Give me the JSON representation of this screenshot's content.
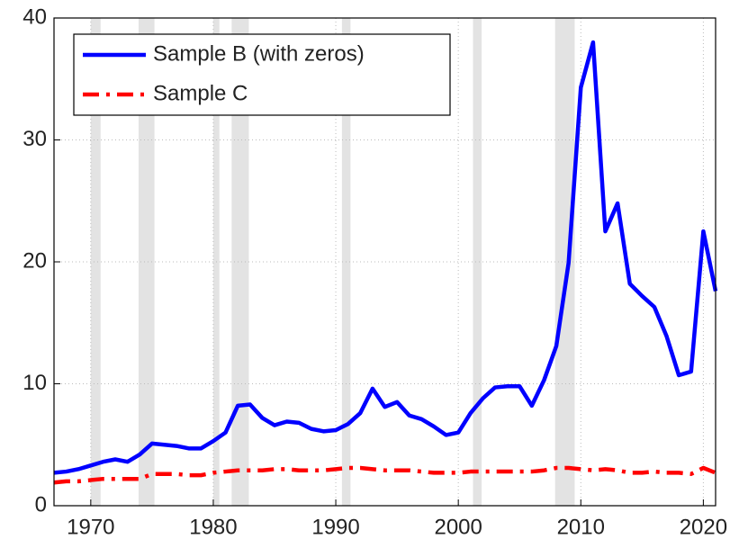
{
  "chart_data": {
    "type": "line",
    "x": [
      1967,
      1968,
      1969,
      1970,
      1971,
      1972,
      1973,
      1974,
      1975,
      1976,
      1977,
      1978,
      1979,
      1980,
      1981,
      1982,
      1983,
      1984,
      1985,
      1986,
      1987,
      1988,
      1989,
      1990,
      1991,
      1992,
      1993,
      1994,
      1995,
      1996,
      1997,
      1998,
      1999,
      2000,
      2001,
      2002,
      2003,
      2004,
      2005,
      2006,
      2007,
      2008,
      2009,
      2010,
      2011,
      2012,
      2013,
      2014,
      2015,
      2016,
      2017,
      2018,
      2019,
      2020,
      2021
    ],
    "series": [
      {
        "name": "Sample B (with zeros)",
        "color": "#0000ff",
        "line_style": "solid",
        "values": [
          2.7,
          2.8,
          3.0,
          3.3,
          3.6,
          3.8,
          3.6,
          4.2,
          5.1,
          5.0,
          4.9,
          4.7,
          4.7,
          5.3,
          6.0,
          8.2,
          8.3,
          7.2,
          6.6,
          6.9,
          6.8,
          6.3,
          6.1,
          6.2,
          6.7,
          7.6,
          9.6,
          8.1,
          8.5,
          7.4,
          7.1,
          6.5,
          5.8,
          6.0,
          7.6,
          8.8,
          9.7,
          9.8,
          9.8,
          8.2,
          10.3,
          13.1,
          19.9,
          34.3,
          38.0,
          22.5,
          24.8,
          18.2,
          17.2,
          16.3,
          13.9,
          10.7,
          11.0,
          22.5,
          17.6
        ]
      },
      {
        "name": "Sample C",
        "color": "#ff0000",
        "line_style": "dashdot",
        "values": [
          1.9,
          2.0,
          2.0,
          2.1,
          2.2,
          2.2,
          2.2,
          2.2,
          2.6,
          2.6,
          2.6,
          2.5,
          2.5,
          2.7,
          2.8,
          2.9,
          2.9,
          2.9,
          3.0,
          3.0,
          2.9,
          2.9,
          2.9,
          3.0,
          3.1,
          3.1,
          3.0,
          2.9,
          2.9,
          2.9,
          2.8,
          2.7,
          2.7,
          2.7,
          2.8,
          2.8,
          2.8,
          2.8,
          2.8,
          2.8,
          2.9,
          3.1,
          3.1,
          3.0,
          2.9,
          3.0,
          2.9,
          2.7,
          2.7,
          2.8,
          2.7,
          2.7,
          2.6,
          3.1,
          2.7
        ]
      }
    ],
    "shaded_periods": [
      [
        1970.0,
        1970.8
      ],
      [
        1973.9,
        1975.2
      ],
      [
        1980.0,
        1980.5
      ],
      [
        1981.5,
        1982.9
      ],
      [
        1990.5,
        1991.2
      ],
      [
        2001.2,
        2001.9
      ],
      [
        2007.9,
        2009.5
      ]
    ],
    "shade_color": "#e3e3e3",
    "xlim": [
      1967,
      2021
    ],
    "ylim": [
      0,
      40
    ],
    "xticks": [
      1970,
      1980,
      1990,
      2000,
      2010,
      2020
    ],
    "yticks": [
      0,
      10,
      20,
      30,
      40
    ],
    "grid": true,
    "legend_position": "upper-left"
  }
}
